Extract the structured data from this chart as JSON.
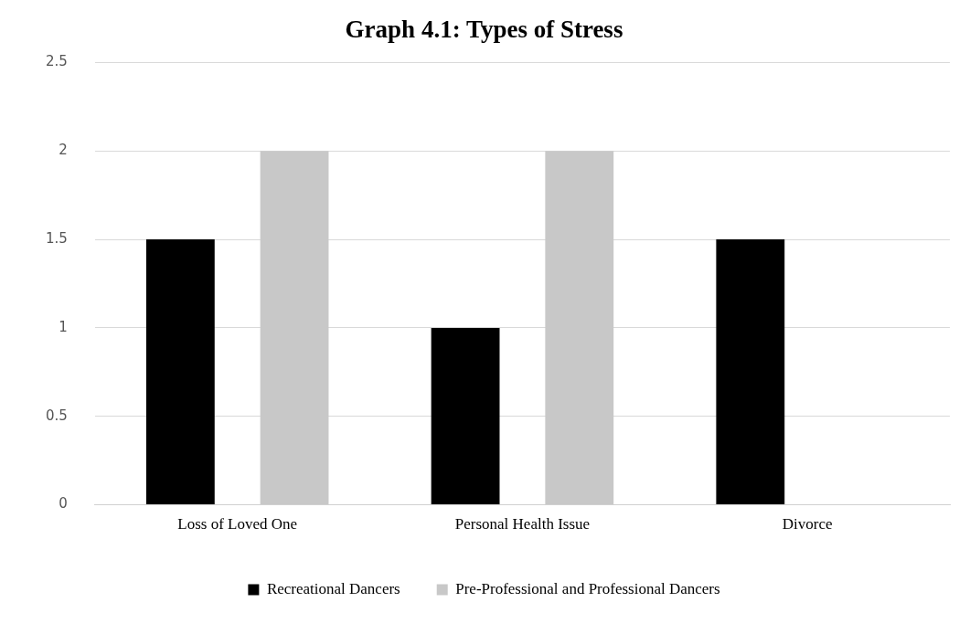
{
  "chart_data": {
    "type": "bar",
    "title": "Graph 4.1: Types of Stress",
    "categories": [
      "Loss of Loved One",
      "Personal Health Issue",
      "Divorce"
    ],
    "series": [
      {
        "name": "Recreational Dancers",
        "color": "#000000",
        "values": [
          1.5,
          1,
          1.5
        ]
      },
      {
        "name": "Pre-Professional and Professional Dancers",
        "color": "#c8c8c8",
        "values": [
          2,
          2,
          0
        ]
      }
    ],
    "ylim": [
      0,
      2.5
    ],
    "yticks": [
      0,
      0.5,
      1,
      1.5,
      2,
      2.5
    ],
    "grid": "y",
    "legend": "bottom"
  }
}
